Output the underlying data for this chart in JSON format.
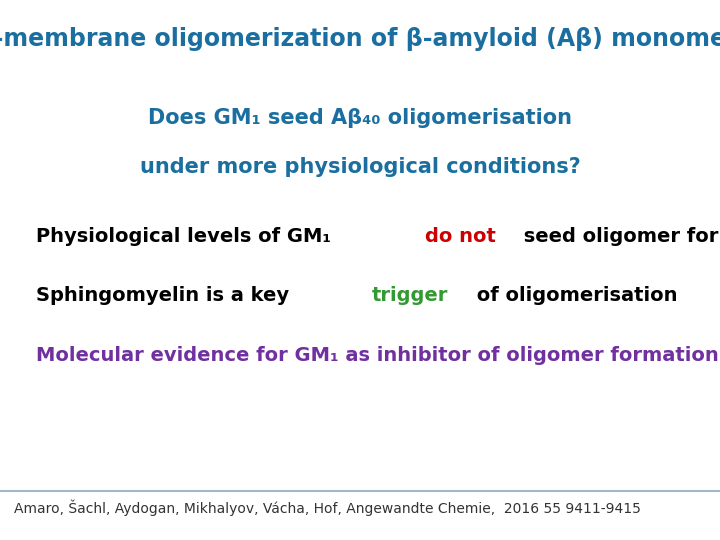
{
  "title": "In-membrane oligomerization of β-amyloid (Aβ) monomers",
  "title_color": "#1a6fa0",
  "title_fontsize": 17,
  "subtitle1": "Does GM₁ seed Aβ₄₀ oligomerisation",
  "subtitle2": "under more physiological conditions?",
  "subtitle_color": "#1a6fa0",
  "subtitle_fontsize": 15,
  "bg_color": "#ffffff",
  "footer_text": "Amaro, Šachl, Aydogan, Mikhalyov, Vácha, Hof, Angewandte Chemie,  2016 55 9411-9415",
  "footer_color": "#333333",
  "footer_fontsize": 10,
  "line_color": "#a0b8c8",
  "bullet_fontsize": 14,
  "red_color": "#cc0000",
  "green_color": "#339933",
  "purple_color": "#7030a0",
  "black_color": "#000000"
}
